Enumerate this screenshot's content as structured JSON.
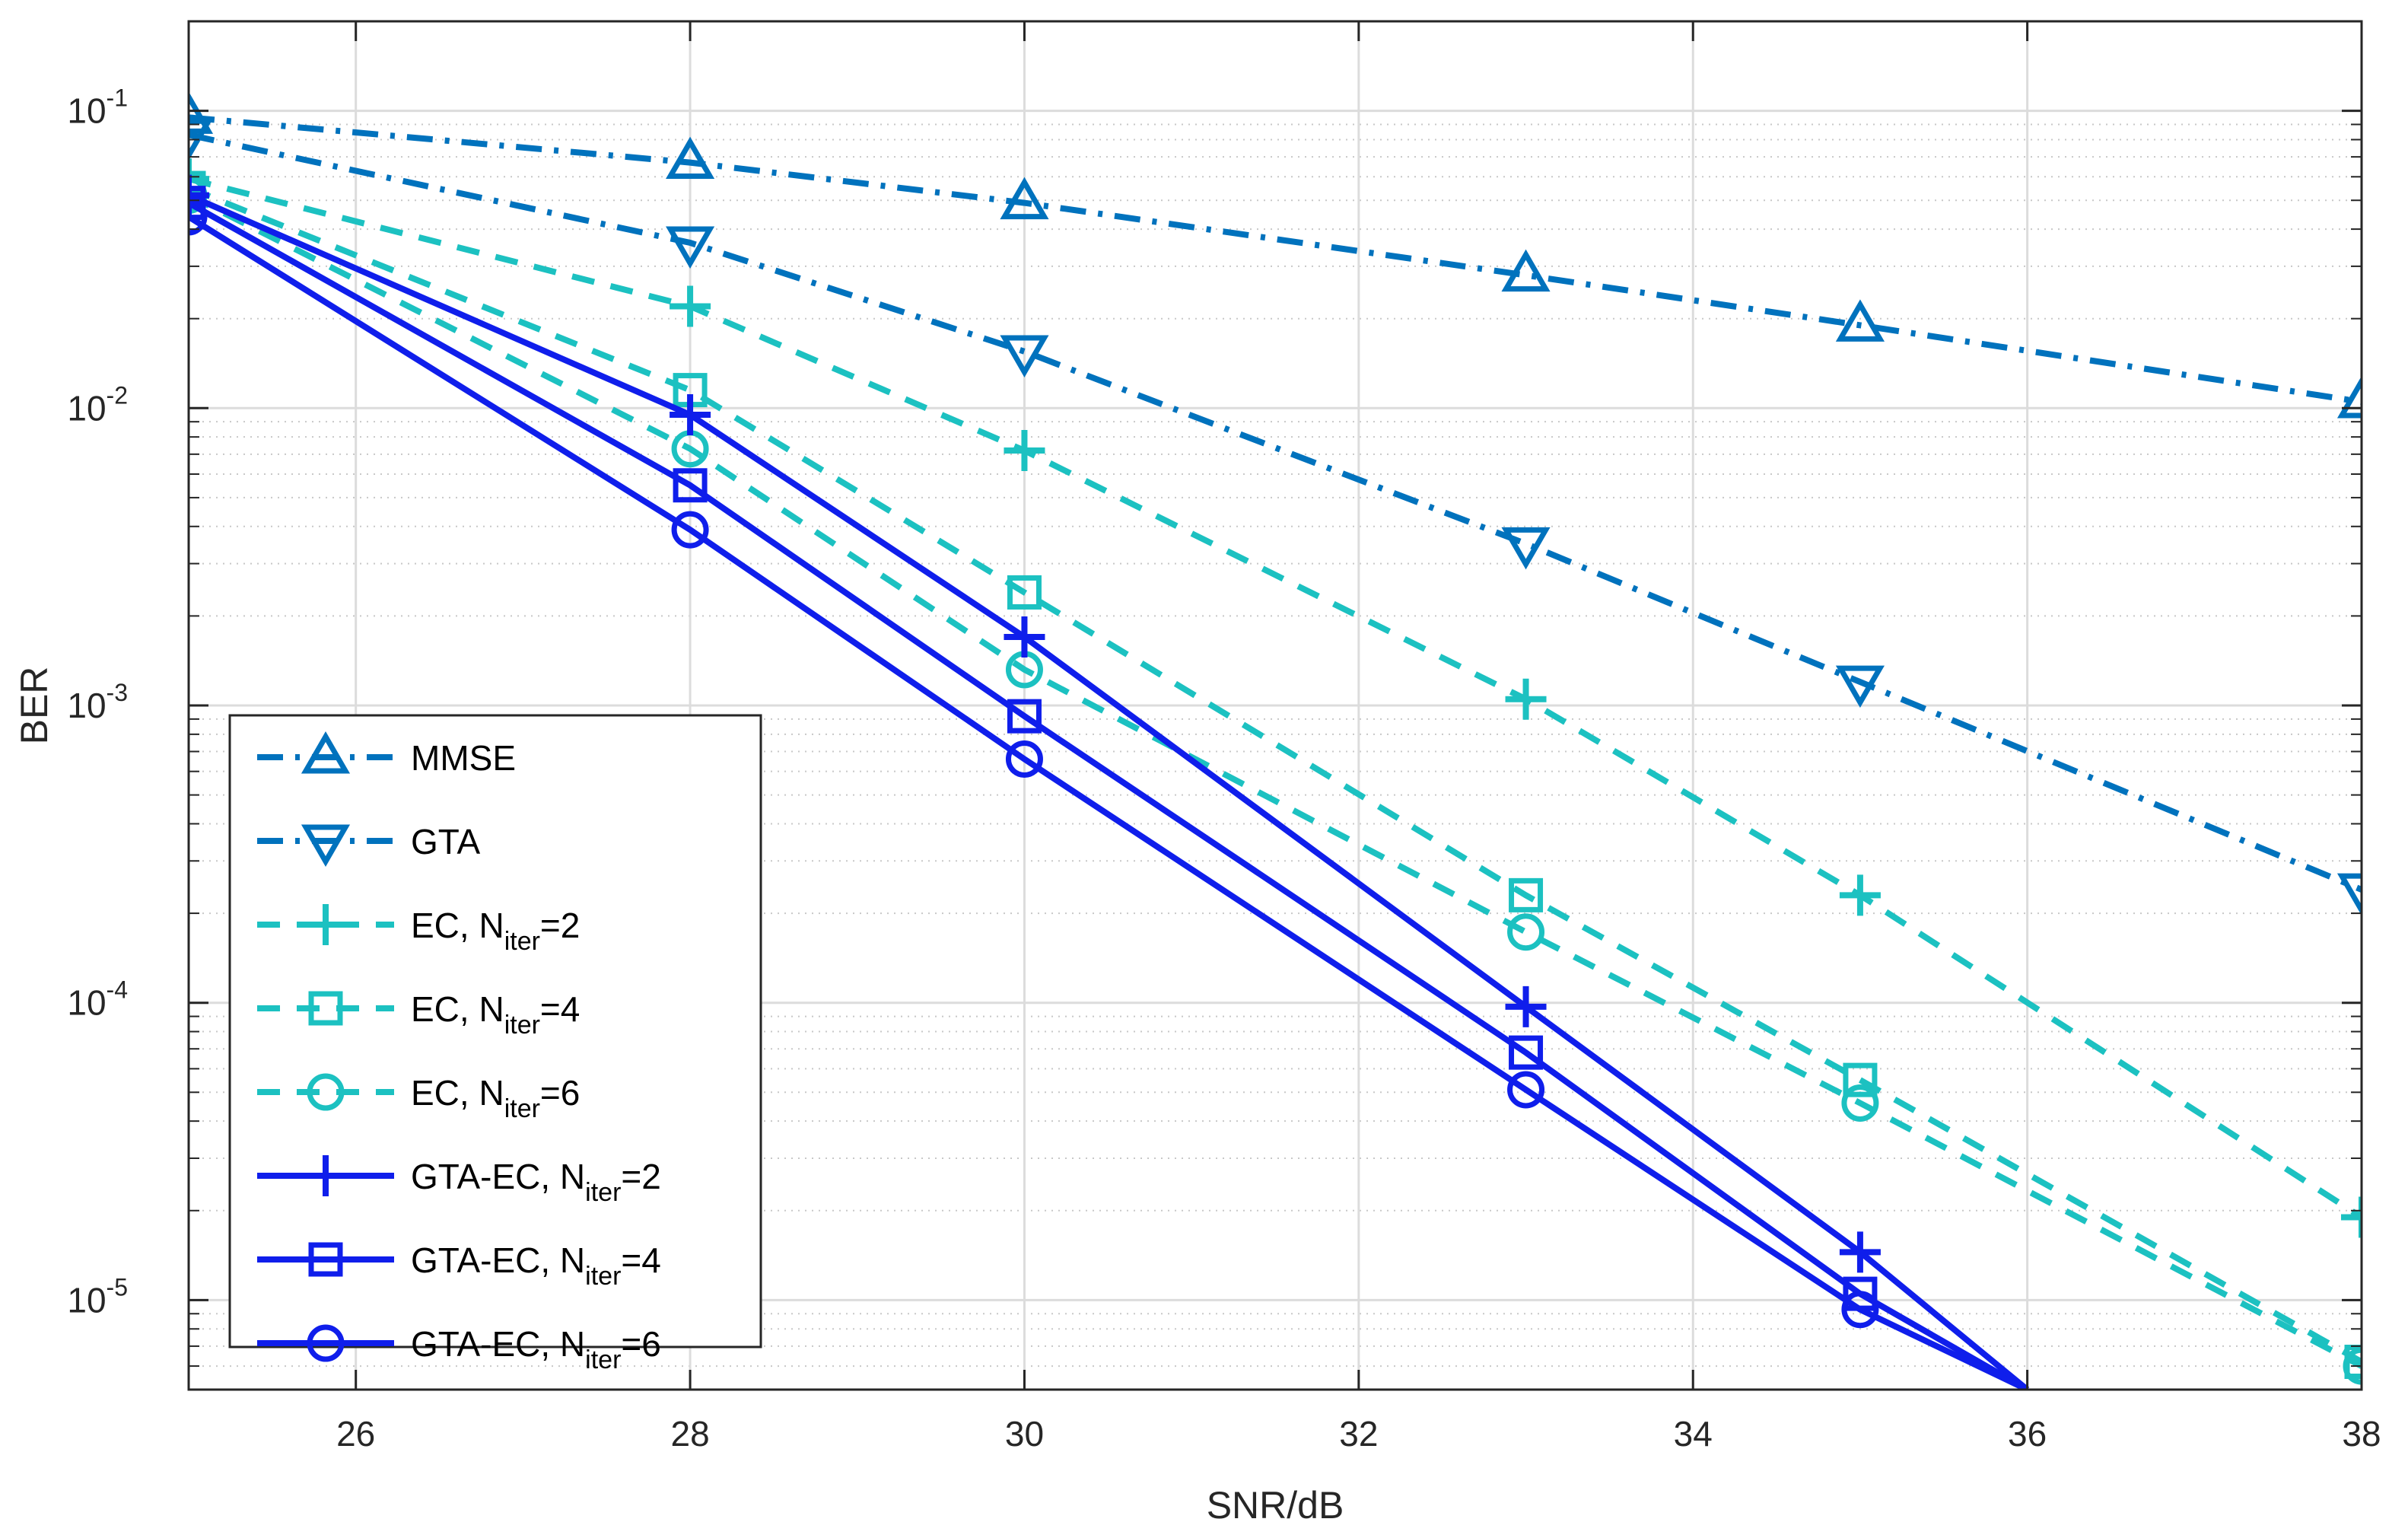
{
  "chart_data": {
    "type": "line",
    "title": "",
    "xlabel": "SNR/dB",
    "ylabel": "BER",
    "xlim": [
      25,
      38
    ],
    "ylim": [
      5e-06,
      0.2
    ],
    "yscale": "log",
    "grid": true,
    "minor_grid": true,
    "legend_position": "lower-left",
    "x_ticks": [
      26,
      28,
      30,
      32,
      34,
      36,
      38
    ],
    "y_ticks": [
      {
        "value": 1e-05,
        "base": "10",
        "exp": "-5"
      },
      {
        "value": 0.0001,
        "base": "10",
        "exp": "-4"
      },
      {
        "value": 0.001,
        "base": "10",
        "exp": "-3"
      },
      {
        "value": 0.01,
        "base": "10",
        "exp": "-2"
      },
      {
        "value": 0.1,
        "base": "10",
        "exp": "-1"
      }
    ],
    "series": [
      {
        "name": "MMSE",
        "label_main": "MMSE",
        "label_sub": "",
        "label_tail": "",
        "color": "#0072BD",
        "line": "dashdot",
        "marker": "triangle-up",
        "x": [
          25,
          28,
          30,
          33,
          35,
          38
        ],
        "y": [
          0.095,
          0.067,
          0.049,
          0.028,
          0.019,
          0.0105
        ]
      },
      {
        "name": "GTA",
        "label_main": "GTA",
        "label_sub": "",
        "label_tail": "",
        "color": "#0072BD",
        "line": "dashdot",
        "marker": "triangle-down",
        "x": [
          25,
          28,
          30,
          33,
          35,
          38
        ],
        "y": [
          0.083,
          0.036,
          0.0155,
          0.0035,
          0.0012,
          0.00024
        ]
      },
      {
        "name": "EC, N_iter=2",
        "label_main": "EC, N",
        "label_sub": "iter",
        "label_tail": "=2",
        "color": "#1CC1C1",
        "line": "dash",
        "marker": "plus",
        "x": [
          25,
          28,
          30,
          33,
          35,
          38
        ],
        "y": [
          0.059,
          0.022,
          0.0072,
          0.00105,
          0.00023,
          1.9e-05
        ]
      },
      {
        "name": "EC, N_iter=4",
        "label_main": "EC, N",
        "label_sub": "iter",
        "label_tail": "=4",
        "color": "#1CC1C1",
        "line": "dash",
        "marker": "square",
        "x": [
          25,
          28,
          30,
          33,
          35,
          38
        ],
        "y": [
          0.055,
          0.0115,
          0.0024,
          0.00023,
          5.5e-05,
          6.2e-06
        ]
      },
      {
        "name": "EC, N_iter=6",
        "label_main": "EC, N",
        "label_sub": "iter",
        "label_tail": "=6",
        "color": "#1CC1C1",
        "line": "dash",
        "marker": "circle",
        "x": [
          25,
          28,
          30,
          33,
          35,
          38
        ],
        "y": [
          0.052,
          0.0073,
          0.00132,
          0.000173,
          4.6e-05,
          6e-06
        ]
      },
      {
        "name": "GTA-EC, N_iter=2",
        "label_main": "GTA-EC, N",
        "label_sub": "iter",
        "label_tail": "=2",
        "color": "#0F1EEB",
        "line": "solid",
        "marker": "plus",
        "x": [
          25,
          28,
          30,
          33,
          35,
          36
        ],
        "y": [
          0.052,
          0.0095,
          0.0017,
          9.7e-05,
          1.45e-05,
          5e-06
        ]
      },
      {
        "name": "GTA-EC, N_iter=4",
        "label_main": "GTA-EC, N",
        "label_sub": "iter",
        "label_tail": "=4",
        "color": "#0F1EEB",
        "line": "solid",
        "marker": "square",
        "x": [
          25,
          28,
          30,
          33,
          35,
          36
        ],
        "y": [
          0.049,
          0.0055,
          0.00092,
          6.8e-05,
          1.05e-05,
          5e-06
        ]
      },
      {
        "name": "GTA-EC, N_iter=6",
        "label_main": "GTA-EC, N",
        "label_sub": "iter",
        "label_tail": "=6",
        "color": "#0F1EEB",
        "line": "solid",
        "marker": "circle",
        "x": [
          25,
          28,
          30,
          33,
          35,
          36
        ],
        "y": [
          0.044,
          0.0039,
          0.00066,
          5.1e-05,
          9.3e-06,
          5e-06
        ]
      }
    ]
  }
}
